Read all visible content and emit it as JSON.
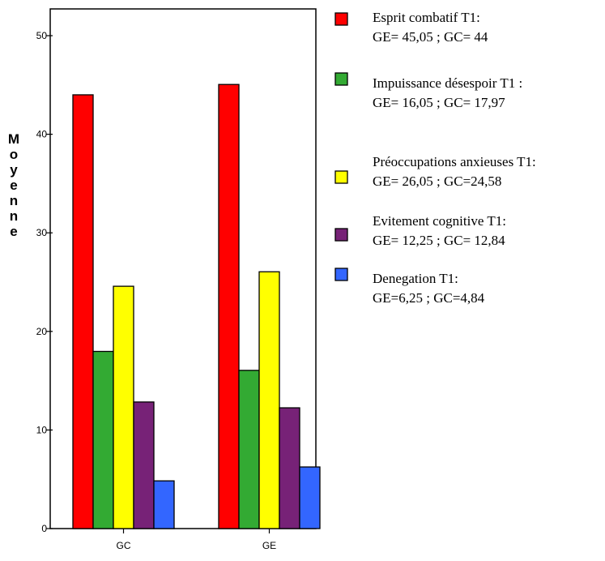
{
  "chart_data": {
    "type": "bar",
    "categories": [
      "GC",
      "GE"
    ],
    "ylabel": "Moyenne",
    "ylim": [
      0,
      52
    ],
    "yticks": [
      0,
      10,
      20,
      30,
      40,
      50
    ],
    "grid": false,
    "legend_position": "right",
    "series": [
      {
        "name": "Esprit combatif T1:",
        "values": [
          44,
          45.05
        ],
        "color": "#ff0000",
        "legend_line2": "GE= 45,05 ; GC= 44"
      },
      {
        "name": "Impuissance désespoir T1 :",
        "values": [
          17.97,
          16.05
        ],
        "color": "#33aa33",
        "legend_line2": "GE= 16,05 ; GC= 17,97"
      },
      {
        "name": "Préoccupations anxieuses T1:",
        "values": [
          24.58,
          26.05
        ],
        "color": "#ffff00",
        "legend_line2": "GE= 26,05 ; GC=24,58"
      },
      {
        "name": "Evitement cognitive T1:",
        "values": [
          12.84,
          12.25
        ],
        "color": "#772277",
        "legend_line2": "GE= 12,25 ; GC= 12,84"
      },
      {
        "name": "Denegation T1:",
        "values": [
          4.84,
          6.25
        ],
        "color": "#3366ff",
        "legend_line2": "GE=6,25 ; GC=4,84"
      }
    ]
  }
}
